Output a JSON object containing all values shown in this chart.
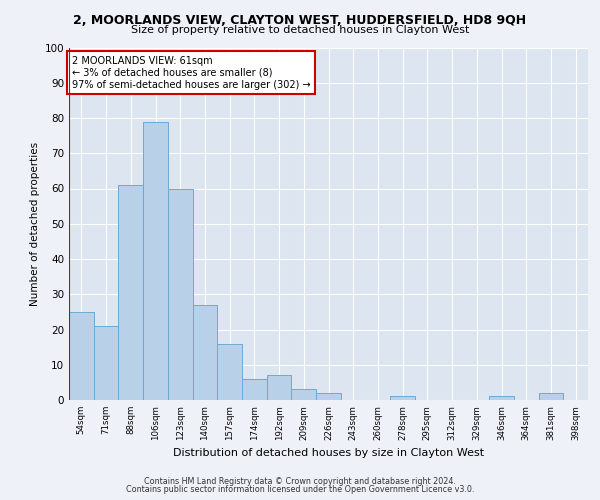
{
  "title_line1": "2, MOORLANDS VIEW, CLAYTON WEST, HUDDERSFIELD, HD8 9QH",
  "title_line2": "Size of property relative to detached houses in Clayton West",
  "xlabel": "Distribution of detached houses by size in Clayton West",
  "ylabel": "Number of detached properties",
  "footer_line1": "Contains HM Land Registry data © Crown copyright and database right 2024.",
  "footer_line2": "Contains public sector information licensed under the Open Government Licence v3.0.",
  "annotation_line1": "2 MOORLANDS VIEW: 61sqm",
  "annotation_line2": "← 3% of detached houses are smaller (8)",
  "annotation_line3": "97% of semi-detached houses are larger (302) →",
  "bar_color": "#b8d0e8",
  "bar_edge_color": "#6aaad4",
  "marker_line_color": "#cc0000",
  "background_color": "#eef2f8",
  "plot_bg_color": "#dde6f0",
  "grid_color": "#ffffff",
  "categories": [
    "54sqm",
    "71sqm",
    "88sqm",
    "106sqm",
    "123sqm",
    "140sqm",
    "157sqm",
    "174sqm",
    "192sqm",
    "209sqm",
    "226sqm",
    "243sqm",
    "260sqm",
    "278sqm",
    "295sqm",
    "312sqm",
    "329sqm",
    "346sqm",
    "364sqm",
    "381sqm",
    "398sqm"
  ],
  "values": [
    25,
    21,
    61,
    79,
    60,
    27,
    16,
    6,
    7,
    3,
    2,
    0,
    0,
    1,
    0,
    0,
    0,
    1,
    0,
    2,
    0
  ],
  "ylim": [
    0,
    100
  ],
  "yticks": [
    0,
    10,
    20,
    30,
    40,
    50,
    60,
    70,
    80,
    90,
    100
  ]
}
